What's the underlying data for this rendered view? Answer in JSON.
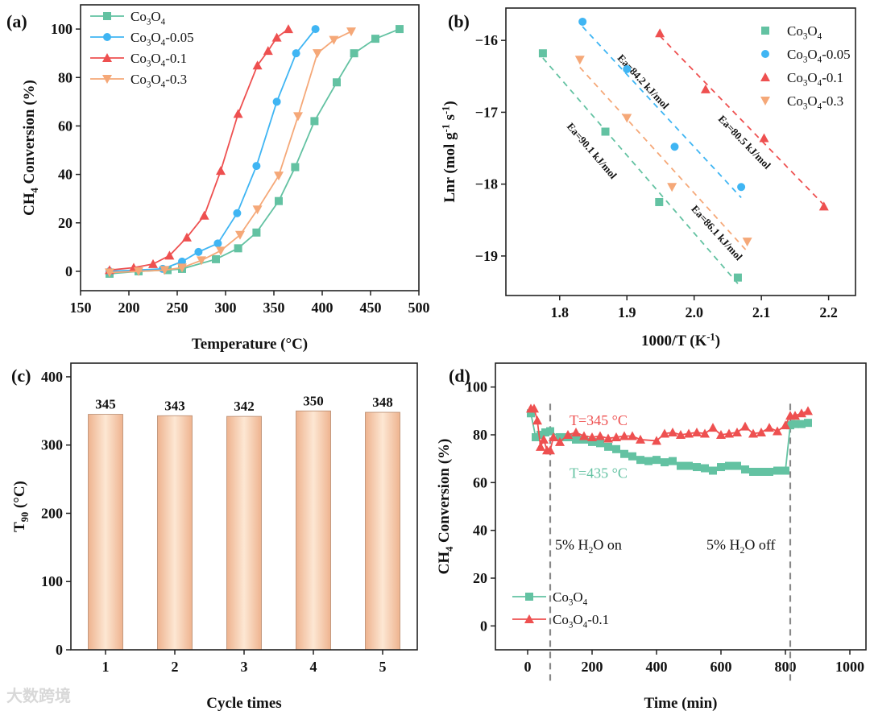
{
  "watermark": "大数跨境",
  "colors": {
    "green": "#63c2a2",
    "blue": "#3fb5f3",
    "red": "#ee5050",
    "orange": "#f5a878",
    "bar_light": "#fde7d3",
    "bar_dark": "#eeb38f",
    "bar_stroke": "#b78a6e",
    "dash_gray": "#888888"
  },
  "chart_data": [
    {
      "panel_label": "(a)",
      "type": "line",
      "xlabel": "Temperature (°C)",
      "ylabel": "CH4 Conversion (%)",
      "xlim": [
        150,
        500
      ],
      "ylim": [
        -8,
        110
      ],
      "xticks": [
        150,
        200,
        250,
        300,
        350,
        400,
        450,
        500
      ],
      "yticks": [
        0,
        20,
        40,
        60,
        80,
        100
      ],
      "legend_position": "top-left",
      "series": [
        {
          "name": "Co3O4",
          "marker": "square",
          "color": "green",
          "points": [
            [
              180,
              -1
            ],
            [
              210,
              0
            ],
            [
              240,
              0.5
            ],
            [
              255,
              1
            ],
            [
              290,
              5
            ],
            [
              313,
              9.5
            ],
            [
              332,
              16
            ],
            [
              355,
              29
            ],
            [
              372,
              43
            ],
            [
              392,
              62
            ],
            [
              415,
              78
            ],
            [
              433,
              90
            ],
            [
              455,
              96
            ],
            [
              480,
              100
            ]
          ]
        },
        {
          "name": "Co3O4-0.05",
          "marker": "circle",
          "color": "blue",
          "points": [
            [
              180,
              0
            ],
            [
              235,
              1
            ],
            [
              255,
              4
            ],
            [
              272,
              8
            ],
            [
              292,
              11.5
            ],
            [
              312,
              24
            ],
            [
              332,
              43.5
            ],
            [
              353,
              70
            ],
            [
              373,
              90
            ],
            [
              393,
              100
            ]
          ]
        },
        {
          "name": "Co3O4-0.1",
          "marker": "triangle",
          "color": "red",
          "points": [
            [
              180,
              0.5
            ],
            [
              205,
              1.5
            ],
            [
              225,
              3
            ],
            [
              242,
              6.5
            ],
            [
              260,
              14
            ],
            [
              278,
              23
            ],
            [
              295,
              41.5
            ],
            [
              313,
              65
            ],
            [
              333,
              85
            ],
            [
              344,
              91
            ],
            [
              353,
              96.5
            ],
            [
              365,
              100
            ]
          ]
        },
        {
          "name": "Co3O4-0.3",
          "marker": "triangle-down",
          "color": "orange",
          "points": [
            [
              180,
              -0.5
            ],
            [
              210,
              0
            ],
            [
              237,
              0.5
            ],
            [
              255,
              1.5
            ],
            [
              275,
              4.5
            ],
            [
              295,
              8.5
            ],
            [
              315,
              15
            ],
            [
              333,
              25.5
            ],
            [
              355,
              39.5
            ],
            [
              375,
              64
            ],
            [
              395,
              90
            ],
            [
              412,
              95.5
            ],
            [
              430,
              99
            ]
          ]
        }
      ]
    },
    {
      "panel_label": "(b)",
      "type": "scatter",
      "xlabel": "1000/T (K-1)",
      "ylabel": "Lnr (mol g-1 s-1)",
      "xlim": [
        1.72,
        2.24
      ],
      "ylim": [
        -19.55,
        -15.55
      ],
      "xticks": [
        1.8,
        1.9,
        2.0,
        2.1,
        2.2
      ],
      "yticks": [
        -16,
        -17,
        -18,
        -19
      ],
      "legend_position": "top-right",
      "series": [
        {
          "name": "Co3O4",
          "marker": "square",
          "color": "green",
          "fit_label": "Ea=90.1 kJ/mol",
          "points": [
            [
              1.775,
              -16.18
            ],
            [
              1.868,
              -17.27
            ],
            [
              1.948,
              -18.25
            ],
            [
              2.065,
              -19.3
            ]
          ]
        },
        {
          "name": "Co3O4-0.05",
          "marker": "circle",
          "color": "blue",
          "fit_label": "Ea=84.2 kJ/mol",
          "points": [
            [
              1.834,
              -15.74
            ],
            [
              1.9,
              -16.4
            ],
            [
              1.971,
              -17.48
            ],
            [
              2.07,
              -18.04
            ]
          ]
        },
        {
          "name": "Co3O4-0.1",
          "marker": "triangle",
          "color": "red",
          "fit_label": "Ea=80.5 kJ/mol",
          "points": [
            [
              1.949,
              -15.9
            ],
            [
              2.017,
              -16.68
            ],
            [
              2.104,
              -17.36
            ],
            [
              2.193,
              -18.31
            ]
          ]
        },
        {
          "name": "Co3O4-0.3",
          "marker": "triangle-down",
          "color": "orange",
          "fit_label": "Ea=86.1 kJ/mol",
          "points": [
            [
              1.83,
              -16.27
            ],
            [
              1.9,
              -17.08
            ],
            [
              1.967,
              -18.04
            ],
            [
              2.079,
              -18.8
            ]
          ]
        }
      ]
    },
    {
      "panel_label": "(c)",
      "type": "bar",
      "xlabel": "Cycle times",
      "ylabel": "T90 (°C)",
      "categories": [
        "1",
        "2",
        "3",
        "4",
        "5"
      ],
      "values": [
        345,
        343,
        342,
        350,
        348
      ],
      "data_labels": [
        "345",
        "343",
        "342",
        "350",
        "348"
      ],
      "ylim": [
        0,
        420
      ],
      "yticks": [
        0,
        100,
        200,
        300,
        400
      ]
    },
    {
      "panel_label": "(d)",
      "type": "line",
      "xlabel": "Time (min)",
      "ylabel": "CH4 Conversion (%)",
      "xlim": [
        -100,
        1050
      ],
      "ylim": [
        -10,
        110
      ],
      "xticks": [
        0,
        200,
        400,
        600,
        800,
        1000
      ],
      "yticks": [
        0,
        20,
        40,
        60,
        80,
        100
      ],
      "legend_position": "bottom-left",
      "annotations": [
        {
          "text": "T=345 °C",
          "color": "red",
          "x": 130,
          "y": 84
        },
        {
          "text": "T=435 °C",
          "color": "green",
          "x": 130,
          "y": 62
        },
        {
          "text": "5% H2O on",
          "x": 85,
          "y": 32
        },
        {
          "text": "5% H2O off",
          "x": 555,
          "y": 32
        }
      ],
      "vlines": [
        70,
        815
      ],
      "series": [
        {
          "name": "Co3O4",
          "marker": "square",
          "color": "green",
          "points": [
            [
              10,
              89
            ],
            [
              25,
              79
            ],
            [
              40,
              80
            ],
            [
              55,
              81
            ],
            [
              70,
              81.5
            ],
            [
              100,
              79
            ],
            [
              125,
              79
            ],
            [
              150,
              78
            ],
            [
              175,
              78
            ],
            [
              200,
              77
            ],
            [
              225,
              76.5
            ],
            [
              250,
              75
            ],
            [
              275,
              74
            ],
            [
              300,
              72
            ],
            [
              325,
              71
            ],
            [
              350,
              69.5
            ],
            [
              375,
              69
            ],
            [
              400,
              69.5
            ],
            [
              425,
              68.5
            ],
            [
              450,
              69
            ],
            [
              475,
              67
            ],
            [
              500,
              67
            ],
            [
              525,
              66.5
            ],
            [
              550,
              66
            ],
            [
              575,
              65
            ],
            [
              600,
              66.5
            ],
            [
              625,
              67
            ],
            [
              650,
              67
            ],
            [
              675,
              65.5
            ],
            [
              700,
              64.5
            ],
            [
              725,
              64.5
            ],
            [
              750,
              64.5
            ],
            [
              775,
              65
            ],
            [
              800,
              65
            ],
            [
              815,
              84
            ],
            [
              830,
              84.5
            ],
            [
              850,
              84.5
            ],
            [
              870,
              85
            ]
          ]
        },
        {
          "name": "Co3O4-0.1",
          "marker": "triangle",
          "color": "red",
          "points": [
            [
              10,
              91
            ],
            [
              20,
              91
            ],
            [
              30,
              86
            ],
            [
              40,
              75
            ],
            [
              50,
              78
            ],
            [
              60,
              73.5
            ],
            [
              70,
              73.5
            ],
            [
              80,
              79
            ],
            [
              100,
              77
            ],
            [
              125,
              80
            ],
            [
              150,
              81
            ],
            [
              175,
              79.5
            ],
            [
              200,
              79
            ],
            [
              225,
              79.5
            ],
            [
              250,
              78.5
            ],
            [
              275,
              79
            ],
            [
              300,
              79.5
            ],
            [
              325,
              79.5
            ],
            [
              350,
              78
            ],
            [
              400,
              77.5
            ],
            [
              425,
              80.5
            ],
            [
              450,
              81
            ],
            [
              475,
              80
            ],
            [
              500,
              80.5
            ],
            [
              525,
              81
            ],
            [
              550,
              80.5
            ],
            [
              575,
              83
            ],
            [
              600,
              80
            ],
            [
              625,
              80.5
            ],
            [
              650,
              81
            ],
            [
              675,
              83.5
            ],
            [
              700,
              80.5
            ],
            [
              725,
              81
            ],
            [
              750,
              83
            ],
            [
              775,
              81.5
            ],
            [
              800,
              84
            ],
            [
              815,
              88
            ],
            [
              830,
              88
            ],
            [
              850,
              89
            ],
            [
              870,
              90
            ]
          ]
        }
      ]
    }
  ]
}
